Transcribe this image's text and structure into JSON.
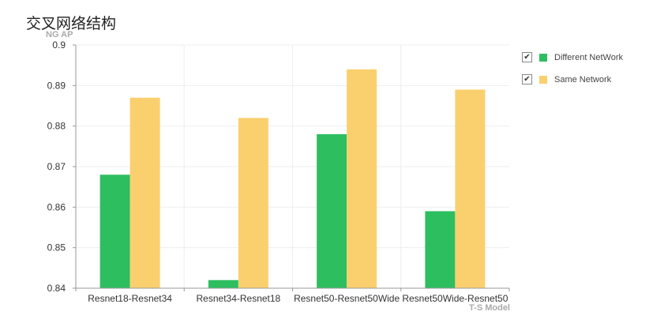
{
  "chart_data": {
    "type": "bar",
    "title": "交叉网络结构",
    "ylabel": "NG AP",
    "xlabel": "T-S Model",
    "ylim": [
      0.84,
      0.9
    ],
    "yticks": [
      "0.84",
      "0.85",
      "0.86",
      "0.87",
      "0.88",
      "0.89",
      "0.9"
    ],
    "categories": [
      "Resnet18-Resnet34",
      "Resnet34-Resnet18",
      "Resnet50-Resnet50Wide",
      "Resnet50Wide-Resnet50"
    ],
    "series": [
      {
        "name": "Different NetWork",
        "color": "#2dbe60",
        "values": [
          0.868,
          0.842,
          0.878,
          0.859
        ]
      },
      {
        "name": "Same Network",
        "color": "#fad06e",
        "values": [
          0.887,
          0.882,
          0.894,
          0.889
        ]
      }
    ],
    "grid": true,
    "legend_position": "right"
  },
  "legend": {
    "check_icon": "✔"
  }
}
